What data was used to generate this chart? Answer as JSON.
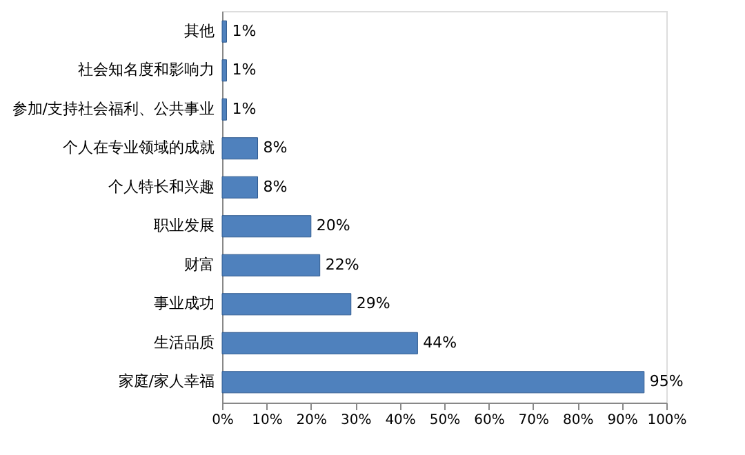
{
  "chart_data": {
    "type": "bar",
    "orientation": "horizontal",
    "categories": [
      "其他",
      "社会知名度和影响力",
      "参加/支持社会福利、公共事业",
      "个人在专业领域的成就",
      "个人特长和兴趣",
      "职业发展",
      "财富",
      "事业成功",
      "生活品质",
      "家庭/家人幸福"
    ],
    "values": [
      1,
      1,
      1,
      8,
      8,
      20,
      22,
      29,
      44,
      95
    ],
    "value_labels": [
      "1%",
      "1%",
      "1%",
      "8%",
      "8%",
      "20%",
      "22%",
      "29%",
      "44%",
      "95%"
    ],
    "color": "#4f81bd",
    "xlim": [
      0,
      100
    ],
    "xticks": [
      {
        "value": 0,
        "label": "0%"
      },
      {
        "value": 10,
        "label": "10%"
      },
      {
        "value": 20,
        "label": "20%"
      },
      {
        "value": 30,
        "label": "30%"
      },
      {
        "value": 40,
        "label": "40%"
      },
      {
        "value": 50,
        "label": "50%"
      },
      {
        "value": 60,
        "label": "60%"
      },
      {
        "value": 70,
        "label": "70%"
      },
      {
        "value": 80,
        "label": "80%"
      },
      {
        "value": 90,
        "label": "90%"
      },
      {
        "value": 100,
        "label": "100%"
      }
    ],
    "grid": false
  }
}
